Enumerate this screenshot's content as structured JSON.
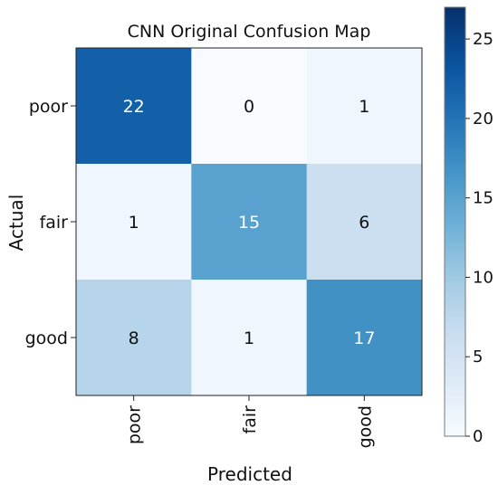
{
  "chart_data": {
    "type": "heatmap",
    "title": "CNN Original Confusion Map",
    "xlabel": "Predicted",
    "ylabel": "Actual",
    "x_categories": [
      "poor",
      "fair",
      "good"
    ],
    "y_categories": [
      "poor",
      "fair",
      "good"
    ],
    "values": [
      [
        22,
        0,
        1
      ],
      [
        1,
        15,
        6
      ],
      [
        8,
        1,
        17
      ]
    ],
    "colormap": "Blues",
    "colorbar": {
      "range": [
        0,
        27
      ],
      "ticks": [
        0,
        5,
        10,
        15,
        20,
        25
      ],
      "tick_labels": [
        "0",
        "5",
        "10",
        "15",
        "20",
        "25"
      ]
    },
    "colors": {
      "low": "#f7fbff",
      "high": "#08306b",
      "text_light": "#ffffff",
      "text_dark": "#111111"
    }
  }
}
